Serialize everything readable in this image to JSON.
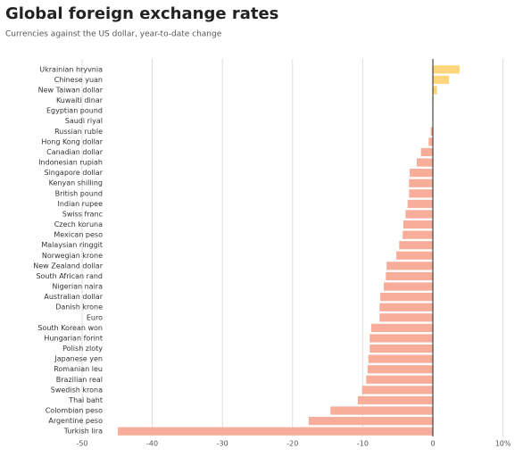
{
  "chart_data": {
    "type": "hbar",
    "title": "Global foreign exchange rates",
    "subtitle": "Currencies against the US dollar, year-to-date change",
    "categories": [
      "Ukrainian hryvnia",
      "Chinese yuan",
      "New Taiwan dollar",
      "Kuwaiti dinar",
      "Egyptian pound",
      "Saudi riyal",
      "Russian ruble",
      "Hong Kong dollar",
      "Canadian dollar",
      "Indonesian rupiah",
      "Singapore dollar",
      "Kenyan shilling",
      "British pound",
      "Indian rupee",
      "Swiss franc",
      "Czech koruna",
      "Mexican peso",
      "Malaysian ringgit",
      "Norwegian krone",
      "New Zealand dollar",
      "South African rand",
      "Nigerian naira",
      "Australian dollar",
      "Danish krone",
      "Euro",
      "South Korean won",
      "Hungarian forint",
      "Polish zloty",
      "Japanese yen",
      "Romanian leu",
      "Brazilian real",
      "Swedish krona",
      "Thai baht",
      "Colombian peso",
      "Argentine peso",
      "Turkish lira"
    ],
    "values": [
      3.8,
      2.3,
      0.6,
      0.1,
      0.05,
      0,
      -0.3,
      -0.6,
      -1.7,
      -2.3,
      -3.3,
      -3.4,
      -3.4,
      -3.6,
      -3.9,
      -4.2,
      -4.3,
      -4.8,
      -5.2,
      -6.6,
      -6.7,
      -7.0,
      -7.5,
      -7.6,
      -7.6,
      -8.8,
      -9.0,
      -9.0,
      -9.2,
      -9.3,
      -9.5,
      -10.1,
      -10.7,
      -14.6,
      -17.7,
      -44.9
    ],
    "color": "#fdd67c",
    "negative_color": "#f7ad99",
    "xlim": [
      -50,
      10
    ],
    "xticks": [
      -50,
      -40,
      -30,
      -20,
      -10,
      0,
      {
        "value": 10,
        "label": "10%"
      }
    ],
    "grid": true
  }
}
